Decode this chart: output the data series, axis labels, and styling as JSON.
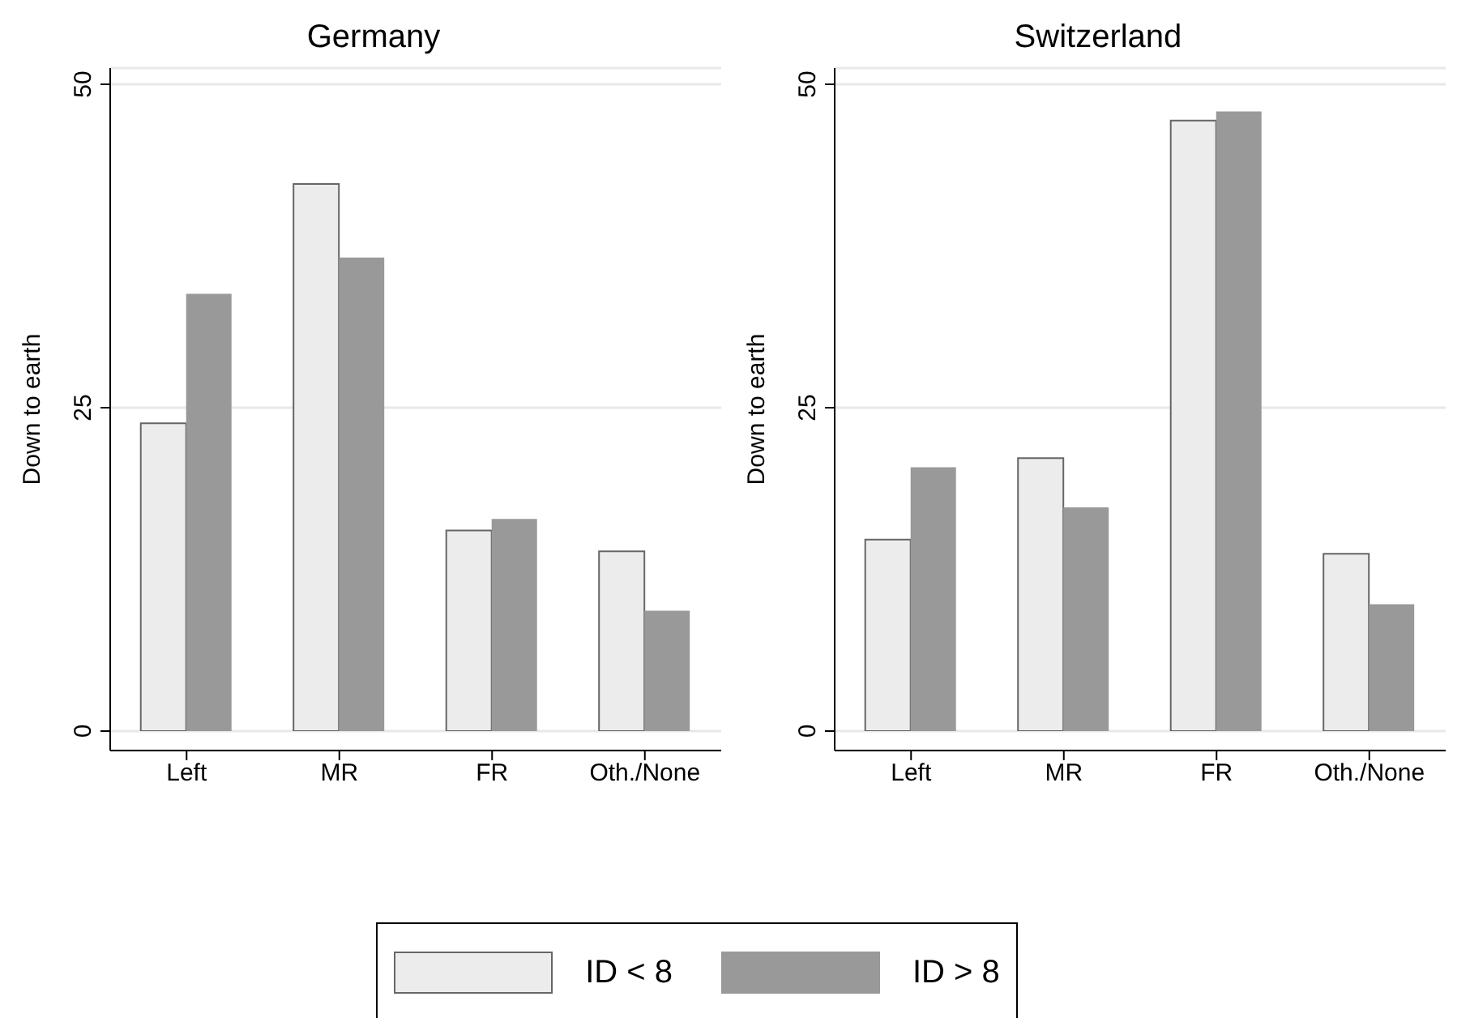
{
  "chart_data": [
    {
      "type": "bar",
      "title": "Germany",
      "ylabel": "Down to earth",
      "categories": [
        "Left",
        "MR",
        "FR",
        "Oth./None"
      ],
      "series": [
        {
          "name": "ID < 8",
          "color": "#ececec",
          "values": [
            23.8,
            42.3,
            15.5,
            13.9
          ]
        },
        {
          "name": "ID > 8",
          "color": "#999999",
          "values": [
            33.8,
            36.6,
            16.4,
            9.3
          ]
        }
      ],
      "ylim": [
        0,
        50
      ],
      "yticks": [
        0,
        25,
        50
      ],
      "grid": "y",
      "legend": "bottom"
    },
    {
      "type": "bar",
      "title": "Switzerland",
      "ylabel": "Down to earth",
      "categories": [
        "Left",
        "MR",
        "FR",
        "Oth./None"
      ],
      "series": [
        {
          "color": "#ececec",
          "values": [
            14.8,
            21.1,
            47.2,
            13.7
          ]
        },
        {
          "color": "#999999",
          "values": [
            20.4,
            17.3,
            47.9,
            9.8
          ]
        }
      ],
      "ylim": [
        0,
        50
      ],
      "yticks": [
        0,
        25,
        50
      ],
      "grid": "y"
    }
  ]
}
